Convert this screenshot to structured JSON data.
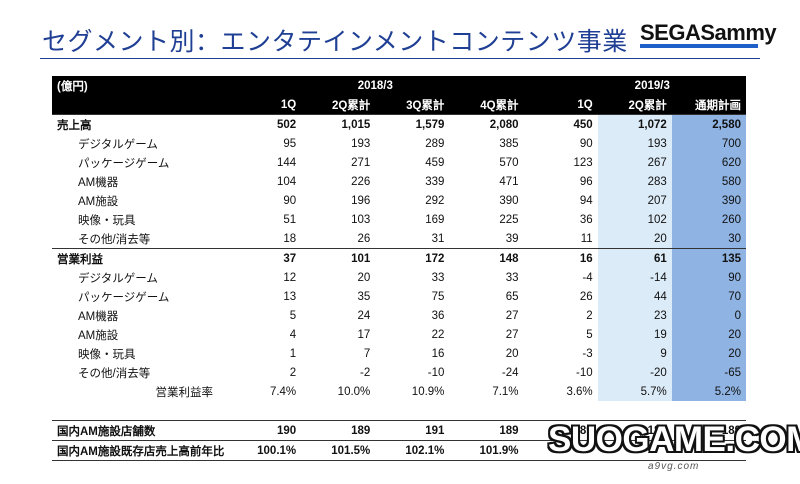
{
  "title": "セグメント別：エンタテインメントコンテンツ事業",
  "logo": "SEGASammy",
  "table": {
    "unit": "(億円)",
    "fy_2018": "2018/3",
    "fy_2019": "2019/3",
    "columns": [
      "1Q",
      "2Q累計",
      "3Q累計",
      "4Q累計",
      "1Q",
      "2Q累計",
      "通期計画"
    ],
    "rows": [
      {
        "label": "売上高",
        "values": [
          "502",
          "1,015",
          "1,579",
          "2,080",
          "450",
          "1,072",
          "2,580"
        ]
      },
      {
        "label": "デジタルゲーム",
        "values": [
          "95",
          "193",
          "289",
          "385",
          "90",
          "193",
          "700"
        ]
      },
      {
        "label": "パッケージゲーム",
        "values": [
          "144",
          "271",
          "459",
          "570",
          "123",
          "267",
          "620"
        ]
      },
      {
        "label": "AM機器",
        "values": [
          "104",
          "226",
          "339",
          "471",
          "96",
          "283",
          "580"
        ]
      },
      {
        "label": "AM施設",
        "values": [
          "90",
          "196",
          "292",
          "390",
          "94",
          "207",
          "390"
        ]
      },
      {
        "label": "映像・玩具",
        "values": [
          "51",
          "103",
          "169",
          "225",
          "36",
          "102",
          "260"
        ]
      },
      {
        "label": "その他/消去等",
        "values": [
          "18",
          "26",
          "31",
          "39",
          "11",
          "20",
          "30"
        ]
      },
      {
        "label": "営業利益",
        "values": [
          "37",
          "101",
          "172",
          "148",
          "16",
          "61",
          "135"
        ]
      },
      {
        "label": "デジタルゲーム",
        "values": [
          "12",
          "20",
          "33",
          "33",
          "-4",
          "-14",
          "90"
        ]
      },
      {
        "label": "パッケージゲーム",
        "values": [
          "13",
          "35",
          "75",
          "65",
          "26",
          "44",
          "70"
        ]
      },
      {
        "label": "AM機器",
        "values": [
          "5",
          "24",
          "36",
          "27",
          "2",
          "23",
          "0"
        ]
      },
      {
        "label": "AM施設",
        "values": [
          "4",
          "17",
          "22",
          "27",
          "5",
          "19",
          "20"
        ]
      },
      {
        "label": "映像・玩具",
        "values": [
          "1",
          "7",
          "16",
          "20",
          "-3",
          "9",
          "20"
        ]
      },
      {
        "label": "その他/消去等",
        "values": [
          "2",
          "-2",
          "-10",
          "-24",
          "-10",
          "-20",
          "-65"
        ]
      },
      {
        "label": "営業利益率",
        "values": [
          "7.4%",
          "10.0%",
          "10.9%",
          "7.1%",
          "3.6%",
          "5.7%",
          "5.2%"
        ]
      }
    ],
    "store_rows": [
      {
        "label": "国内AM施設店舗数",
        "values": [
          "190",
          "189",
          "191",
          "189",
          "189",
          "189",
          "189"
        ]
      },
      {
        "label": "国内AM施設既存店売上高前年比",
        "values": [
          "100.1%",
          "101.5%",
          "102.1%",
          "101.9%",
          "",
          "",
          ""
        ]
      }
    ]
  },
  "watermark": {
    "text": "SUOGAME.COM",
    "sub": "a9vg.com"
  }
}
